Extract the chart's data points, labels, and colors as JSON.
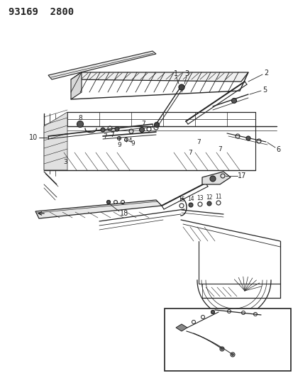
{
  "title": "93169  2800",
  "bg_color": "#ffffff",
  "line_color": "#222222",
  "title_fontsize": 10,
  "label_fontsize": 7,
  "fig_width": 4.14,
  "fig_height": 5.33,
  "dpi": 100
}
